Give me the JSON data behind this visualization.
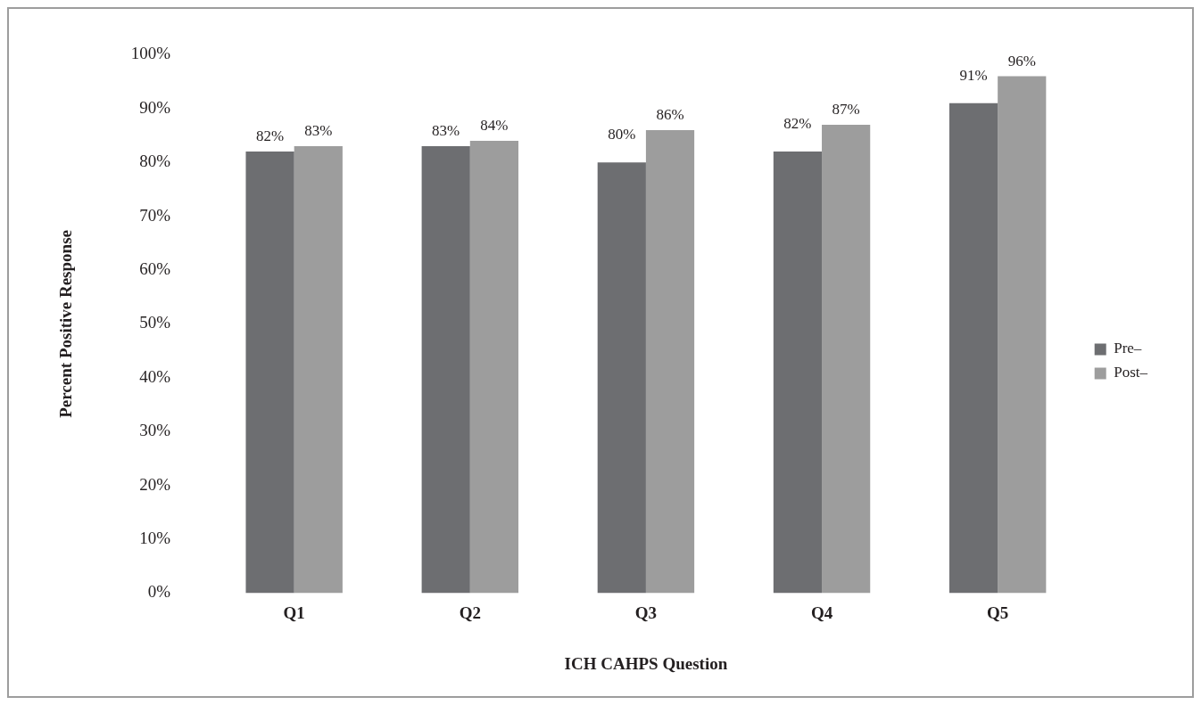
{
  "chart_data": {
    "type": "bar",
    "xlabel": "ICH CAHPS Question",
    "ylabel": "Percent Positive Response",
    "categories": [
      "Q1",
      "Q2",
      "Q3",
      "Q4",
      "Q5"
    ],
    "series": [
      {
        "name": "Pre–",
        "color": "#6d6e71",
        "values": [
          82,
          83,
          80,
          82,
          91
        ],
        "value_labels": [
          "82%",
          "83%",
          "80%",
          "82%",
          "91%"
        ]
      },
      {
        "name": "Post–",
        "color": "#9d9d9d",
        "values": [
          83,
          84,
          86,
          87,
          96
        ],
        "value_labels": [
          "83%",
          "84%",
          "86%",
          "87%",
          "96%"
        ]
      }
    ],
    "ylim": [
      0,
      100
    ],
    "yticks": [
      {
        "value": 0,
        "label": "0%"
      },
      {
        "value": 10,
        "label": "10%"
      },
      {
        "value": 20,
        "label": "20%"
      },
      {
        "value": 30,
        "label": "30%"
      },
      {
        "value": 40,
        "label": "40%"
      },
      {
        "value": 50,
        "label": "50%"
      },
      {
        "value": 60,
        "label": "60%"
      },
      {
        "value": 70,
        "label": "70%"
      },
      {
        "value": 80,
        "label": "80%"
      },
      {
        "value": 90,
        "label": "90%"
      },
      {
        "value": 100,
        "label": "100%"
      }
    ],
    "grid": false,
    "legend": "right"
  }
}
